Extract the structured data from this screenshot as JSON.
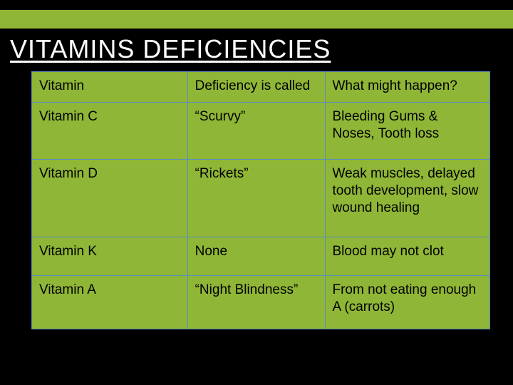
{
  "title": "VITAMINS DEFICIENCIES",
  "colors": {
    "background": "#000000",
    "accent": "#8fb636",
    "table_border": "#5a8bc4",
    "title_color": "#ffffff",
    "text_color": "#000000"
  },
  "table": {
    "columns": [
      "Vitamin",
      "Deficiency is called",
      "What might happen?"
    ],
    "rows": [
      [
        "Vitamin C",
        "“Scurvy”",
        "Bleeding Gums & Noses,  Tooth loss"
      ],
      [
        "Vitamin D",
        "“Rickets”",
        "Weak muscles, delayed tooth development, slow wound healing"
      ],
      [
        "Vitamin K",
        "None",
        "Blood may not clot"
      ],
      [
        "Vitamin A",
        "“Night Blindness”",
        "From not eating enough A (carrots)"
      ]
    ],
    "column_widths_pct": [
      34,
      30,
      36
    ],
    "cell_fontsize": 19,
    "title_fontsize": 36
  }
}
